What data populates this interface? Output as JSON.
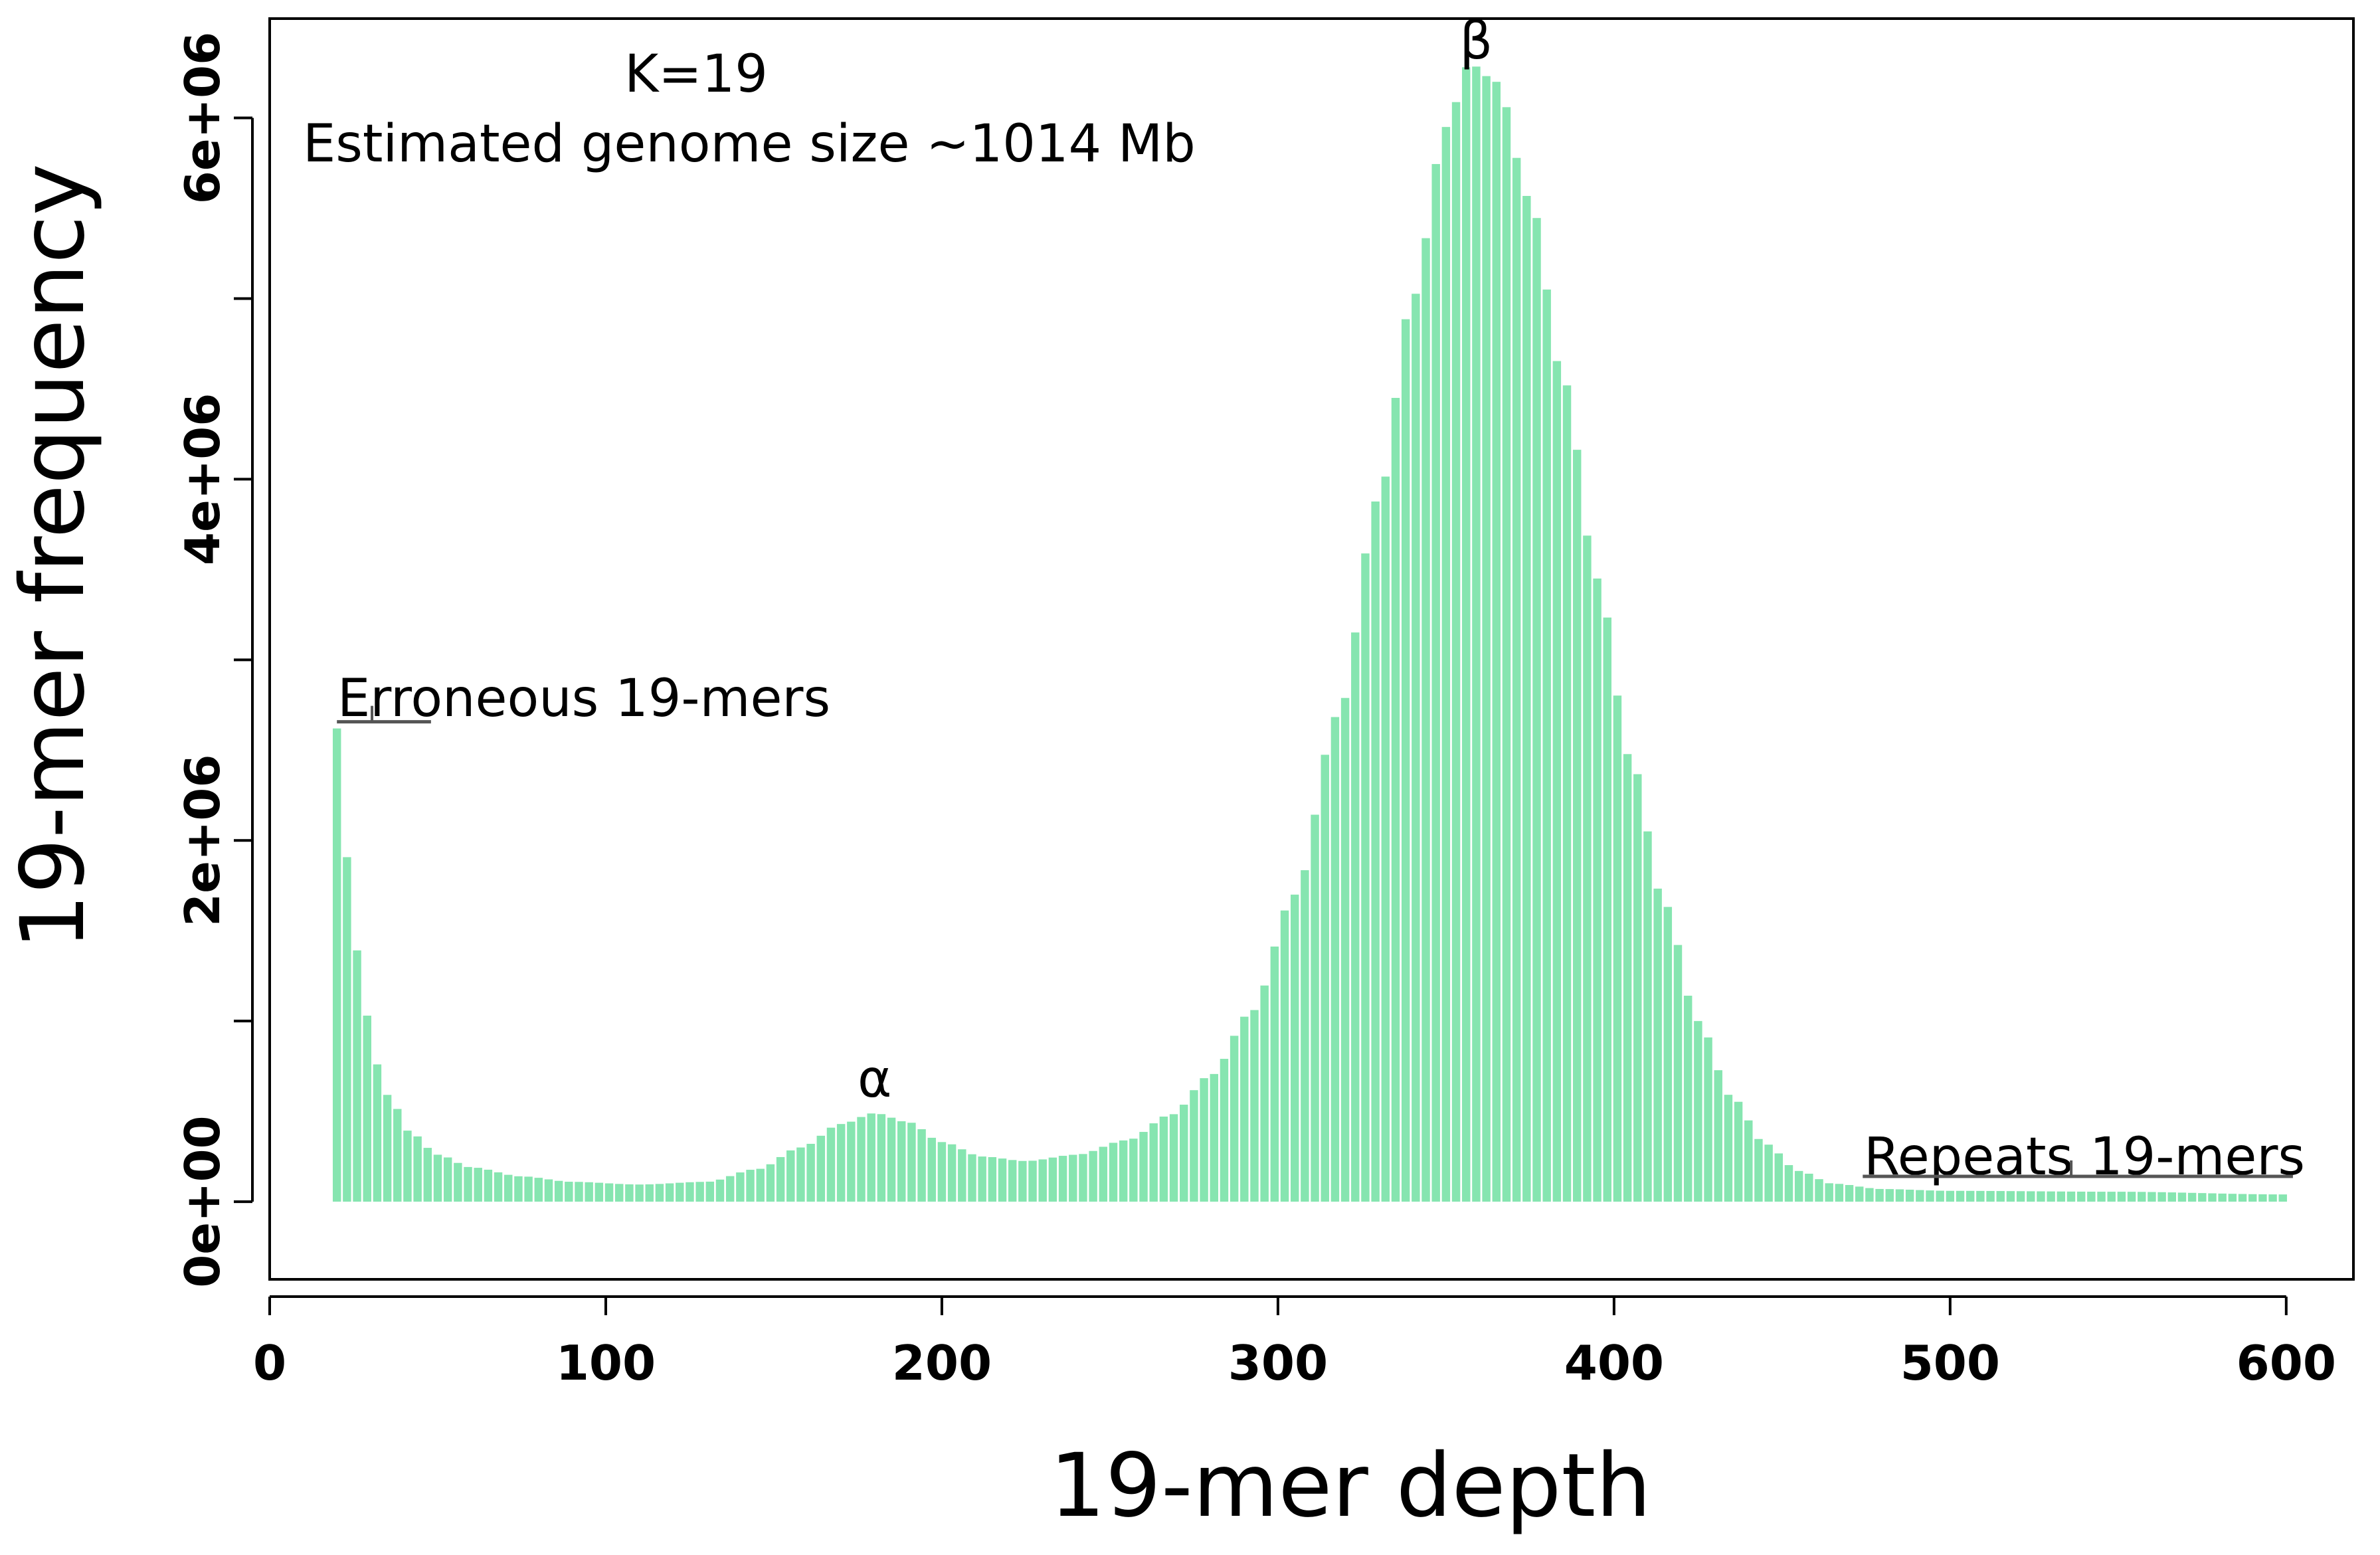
{
  "chart_data": {
    "type": "bar",
    "xlabel": "19-mer depth",
    "ylabel": "19-mer frequency",
    "xlim": [
      0,
      620
    ],
    "ylim": [
      -430000,
      6550000
    ],
    "xticks": [
      0,
      100,
      200,
      300,
      400,
      500,
      600
    ],
    "xtick_labels": [
      "0",
      "100",
      "200",
      "300",
      "400",
      "500",
      "600"
    ],
    "yticks": [
      0,
      1000000,
      2000000,
      3000000,
      4000000,
      5000000,
      6000000
    ],
    "ytick_labels": [
      "0e+00",
      "",
      "2e+06",
      "",
      "4e+06",
      "",
      "6e+06"
    ],
    "bar_color": "#86E5B0",
    "series": [
      {
        "name": "19-mer frequency",
        "depth_start": 20,
        "depth_end": 600,
        "depth_step": 3,
        "profile": [
          [
            20,
            2620000
          ],
          [
            22,
            2050000
          ],
          [
            25,
            1500000
          ],
          [
            28,
            1080000
          ],
          [
            32,
            760000
          ],
          [
            36,
            560000
          ],
          [
            42,
            380000
          ],
          [
            50,
            260000
          ],
          [
            60,
            190000
          ],
          [
            75,
            140000
          ],
          [
            90,
            110000
          ],
          [
            110,
            95000
          ],
          [
            130,
            110000
          ],
          [
            145,
            180000
          ],
          [
            158,
            300000
          ],
          [
            170,
            430000
          ],
          [
            180,
            490000
          ],
          [
            190,
            440000
          ],
          [
            200,
            330000
          ],
          [
            212,
            250000
          ],
          [
            225,
            225000
          ],
          [
            240,
            260000
          ],
          [
            255,
            340000
          ],
          [
            268,
            480000
          ],
          [
            280,
            700000
          ],
          [
            292,
            1050000
          ],
          [
            305,
            1700000
          ],
          [
            318,
            2700000
          ],
          [
            330,
            3900000
          ],
          [
            340,
            5000000
          ],
          [
            350,
            5950000
          ],
          [
            357,
            6300000
          ],
          [
            365,
            6200000
          ],
          [
            375,
            5550000
          ],
          [
            385,
            4550000
          ],
          [
            395,
            3450000
          ],
          [
            405,
            2450000
          ],
          [
            415,
            1650000
          ],
          [
            425,
            1000000
          ],
          [
            435,
            580000
          ],
          [
            445,
            320000
          ],
          [
            455,
            170000
          ],
          [
            465,
            100000
          ],
          [
            480,
            70000
          ],
          [
            500,
            60000
          ],
          [
            550,
            55000
          ],
          [
            600,
            40000
          ]
        ]
      }
    ],
    "annotations": {
      "k_label": "K=19",
      "genome_size": "Estimated genome size ~1014 Mb",
      "erroneous_label": "Erroneous 19-mers",
      "repeats_label": "Repeats 19-mers",
      "erroneous_range": [
        20,
        48
      ],
      "repeats_range": [
        474,
        602
      ],
      "bracket_level": 2620000,
      "repeats_bracket_level": 140000,
      "alpha_label": "α",
      "alpha_depth": 180,
      "beta_label": "β",
      "beta_depth": 357
    }
  }
}
